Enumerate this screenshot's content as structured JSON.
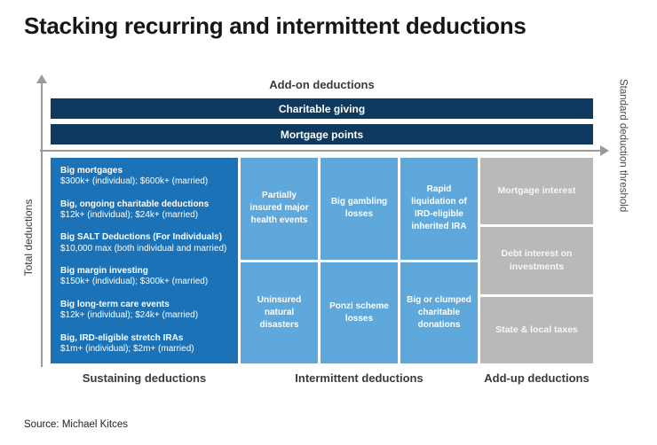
{
  "title": "Stacking recurring and intermittent deductions",
  "source": "Source: Michael Kitces",
  "axes": {
    "top_label": "Add-on deductions",
    "left_label": "Total deductions",
    "right_label": "Standard deduction threshold"
  },
  "addon_bars": [
    {
      "label": "Charitable giving"
    },
    {
      "label": "Mortgage points"
    }
  ],
  "sustaining": {
    "footer": "Sustaining deductions",
    "items": [
      {
        "title": "Big mortgages",
        "detail": "$300k+ (individual); $600k+ (married)"
      },
      {
        "title": "Big, ongoing charitable deductions",
        "detail": "$12k+ (individual); $24k+ (married)"
      },
      {
        "title": "Big SALT Deductions (For Individuals)",
        "detail": "$10,000 max (both individual and married)"
      },
      {
        "title": "Big margin investing",
        "detail": "$150k+ (individual); $300k+ (married)"
      },
      {
        "title": "Big long-term care events",
        "detail": "$12k+ (individual); $24k+ (married)"
      },
      {
        "title": "Big, IRD-eligible stretch IRAs",
        "detail": "$1m+ (individual); $2m+ (married)"
      }
    ]
  },
  "intermittent": {
    "footer": "Intermittent deductions",
    "cells": [
      "Partially insured major health events",
      "Big gambling losses",
      "Rapid liquidation of IRD-eligible inherited IRA",
      "Uninsured natural disasters",
      "Ponzi scheme losses",
      "Big or clumped charitable donations"
    ]
  },
  "addup": {
    "footer": "Add-up deductions",
    "cells": [
      "Mortgage interest",
      "Debt interest on investments",
      "State & local taxes"
    ]
  },
  "colors": {
    "navy": "#0E3A5F",
    "primary_blue": "#1B72B7",
    "light_blue": "#5FA8DC",
    "gray": "#B9B9B9",
    "axis_gray": "#9A9A9A"
  }
}
